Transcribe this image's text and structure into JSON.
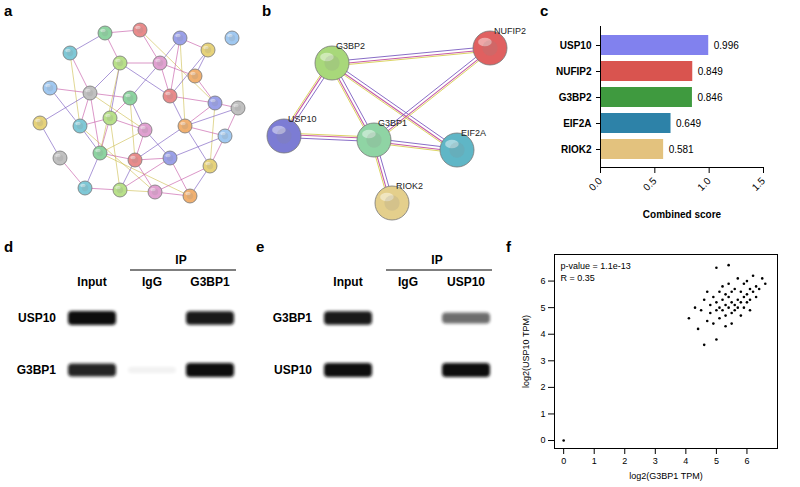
{
  "panel_labels": [
    "a",
    "b",
    "c",
    "d",
    "e",
    "f"
  ],
  "chart_data": [
    {
      "type": "bar",
      "orientation": "horizontal",
      "categories": [
        "USP10",
        "NUFIP2",
        "G3BP2",
        "EIF2A",
        "RIOK2"
      ],
      "values": [
        0.996,
        0.849,
        0.846,
        0.649,
        0.581
      ],
      "colors": [
        "#8181ee",
        "#d9544f",
        "#3f9a3f",
        "#2d82a8",
        "#e3c27e"
      ],
      "xlabel": "Combined score",
      "xlim": [
        0,
        1.5
      ],
      "xticks": [
        {
          "value": 0,
          "label": "0.0"
        },
        {
          "value": 0.5,
          "label": "0.5"
        },
        {
          "value": 1,
          "label": "1.0"
        },
        {
          "value": 1.5,
          "label": "1.5"
        }
      ],
      "data_labels": true
    },
    {
      "type": "scatter",
      "xlabel": "log2(G3BP1 TPM)",
      "ylabel": "log2(USP10 TPM)",
      "annotations": [
        "p-value = 1.1e-13",
        "R = 0.35"
      ],
      "color": "#000000",
      "x": [
        4.1,
        4.3,
        4.4,
        4.5,
        4.6,
        4.7,
        4.7,
        4.8,
        4.8,
        4.9,
        4.9,
        5.0,
        5.0,
        5.0,
        5.1,
        5.1,
        5.1,
        5.2,
        5.2,
        5.2,
        5.3,
        5.3,
        5.3,
        5.3,
        5.4,
        5.4,
        5.4,
        5.5,
        5.5,
        5.5,
        5.5,
        5.6,
        5.6,
        5.6,
        5.7,
        5.7,
        5.7,
        5.8,
        5.8,
        5.8,
        5.9,
        5.9,
        5.9,
        6.0,
        6.0,
        6.0,
        6.1,
        6.1,
        6.1,
        6.2,
        6.2,
        6.3,
        6.3,
        6.4,
        6.5,
        6.6,
        5.4,
        5.0,
        4.6,
        0
      ],
      "values": [
        4.6,
        5.0,
        4.2,
        4.9,
        5.3,
        4.5,
        5.6,
        4.8,
        5.1,
        4.4,
        5.4,
        4.9,
        5.2,
        3.8,
        5.0,
        5.6,
        4.6,
        5.3,
        4.9,
        5.8,
        4.7,
        5.1,
        5.5,
        4.3,
        5.0,
        5.4,
        5.9,
        4.8,
        5.2,
        5.6,
        4.4,
        5.1,
        5.7,
        4.9,
        5.3,
        5.0,
        6.1,
        5.2,
        5.6,
        4.7,
        5.4,
        5.0,
        5.9,
        5.5,
        5.2,
        6.0,
        5.3,
        5.7,
        4.9,
        5.6,
        6.2,
        5.4,
        5.8,
        5.7,
        6.1,
        5.9,
        6.6,
        6.5,
        3.6,
        0
      ],
      "xlim": [
        -0.3,
        7
      ],
      "ylim": [
        -0.3,
        7
      ],
      "xticks": [
        0,
        1,
        2,
        3,
        4,
        5,
        6
      ],
      "yticks": [
        0,
        1,
        2,
        3,
        4,
        5,
        6
      ]
    }
  ],
  "diagrams": {
    "network_a": {
      "type": "network"
    },
    "network_b": {
      "type": "network",
      "nodes": [
        {
          "label": "G3BP2",
          "color": "#a8d87a"
        },
        {
          "label": "NUFIP2",
          "color": "#e06060"
        },
        {
          "label": "USP10",
          "color": "#7c7cd4"
        },
        {
          "label": "G3BP1",
          "color": "#8fd4a4"
        },
        {
          "label": "EIF2A",
          "color": "#5fb6c6"
        },
        {
          "label": "RIOK2",
          "color": "#e4cf8c"
        }
      ],
      "edges": [
        [
          "G3BP2",
          "NUFIP2"
        ],
        [
          "G3BP2",
          "USP10"
        ],
        [
          "G3BP2",
          "G3BP1"
        ],
        [
          "G3BP2",
          "EIF2A"
        ],
        [
          "G3BP1",
          "USP10"
        ],
        [
          "G3BP1",
          "NUFIP2"
        ],
        [
          "G3BP1",
          "EIF2A"
        ],
        [
          "G3BP1",
          "RIOK2"
        ]
      ]
    },
    "blot_d": {
      "type": "western_blot",
      "group_label": "IP",
      "columns": [
        "Input",
        "IgG",
        "G3BP1"
      ],
      "rows": [
        {
          "label": "USP10",
          "bands": [
            1,
            0,
            0.95
          ]
        },
        {
          "label": "G3BP1",
          "bands": [
            0.9,
            0.05,
            1
          ]
        }
      ]
    },
    "blot_e": {
      "type": "western_blot",
      "group_label": "IP",
      "columns": [
        "Input",
        "IgG",
        "USP10"
      ],
      "rows": [
        {
          "label": "G3BP1",
          "bands": [
            0.95,
            0,
            0.6
          ]
        },
        {
          "label": "USP10",
          "bands": [
            1,
            0,
            1
          ]
        }
      ]
    }
  }
}
